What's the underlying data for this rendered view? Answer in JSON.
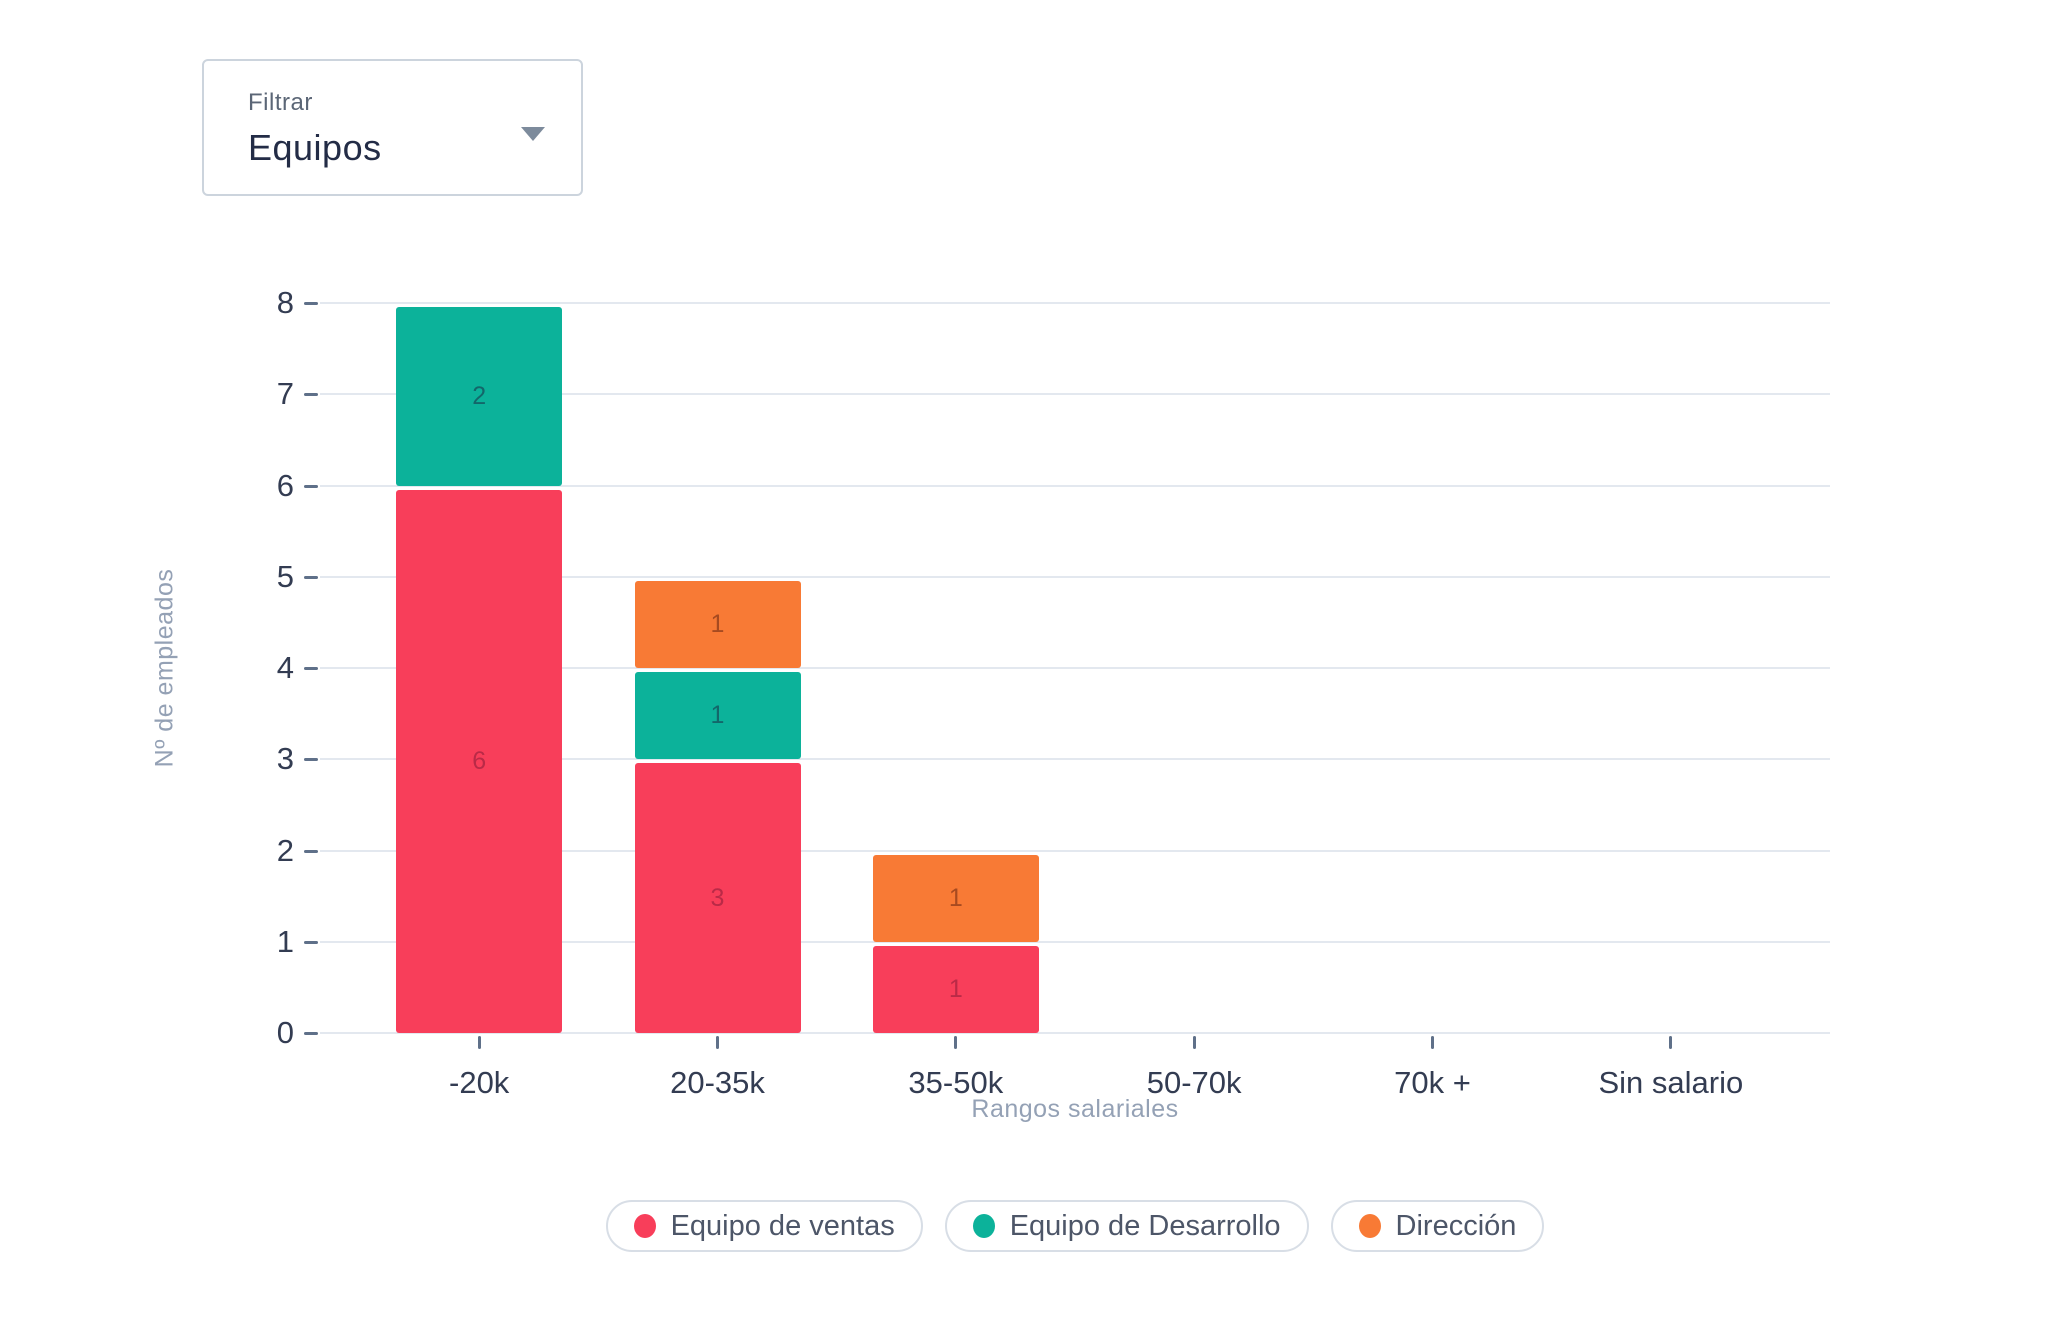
{
  "filter": {
    "label": "Filtrar",
    "value": "Equipos"
  },
  "chart_data": {
    "type": "bar",
    "stacked": true,
    "title": "",
    "xlabel": "Rangos salariales",
    "ylabel": "Nº de empleados",
    "categories": [
      "-20k",
      "20-35k",
      "35-50k",
      "50-70k",
      "70k +",
      "Sin salario"
    ],
    "series": [
      {
        "name": "Equipo de ventas",
        "color": "#f83e5a",
        "label_color": "#b02744",
        "values": [
          6,
          3,
          1,
          0,
          0,
          0
        ]
      },
      {
        "name": "Equipo de Desarrollo",
        "color": "#0cb29a",
        "label_color": "#155a62",
        "values": [
          2,
          1,
          0,
          0,
          0,
          0
        ]
      },
      {
        "name": "Dirección",
        "color": "#f87a35",
        "label_color": "#99421d",
        "values": [
          0,
          1,
          1,
          0,
          0,
          0
        ]
      }
    ],
    "ylim": [
      0,
      8
    ],
    "yticks": [
      0,
      1,
      2,
      3,
      4,
      5,
      6,
      7,
      8
    ],
    "grid": true,
    "legend_position": "bottom"
  },
  "theme": {
    "background": "#ffffff",
    "grid": "#e3e8ef",
    "tick_mark": "#5f7089",
    "tick_label": "#333c52",
    "axis_title": "#94a1b5",
    "legend_border": "#d8dee6",
    "legend_text": "#4d5668",
    "filter_border": "#ccd4dd",
    "filter_label": "#5b6676",
    "filter_value": "#232c46",
    "caret": "#7d8b9c"
  }
}
